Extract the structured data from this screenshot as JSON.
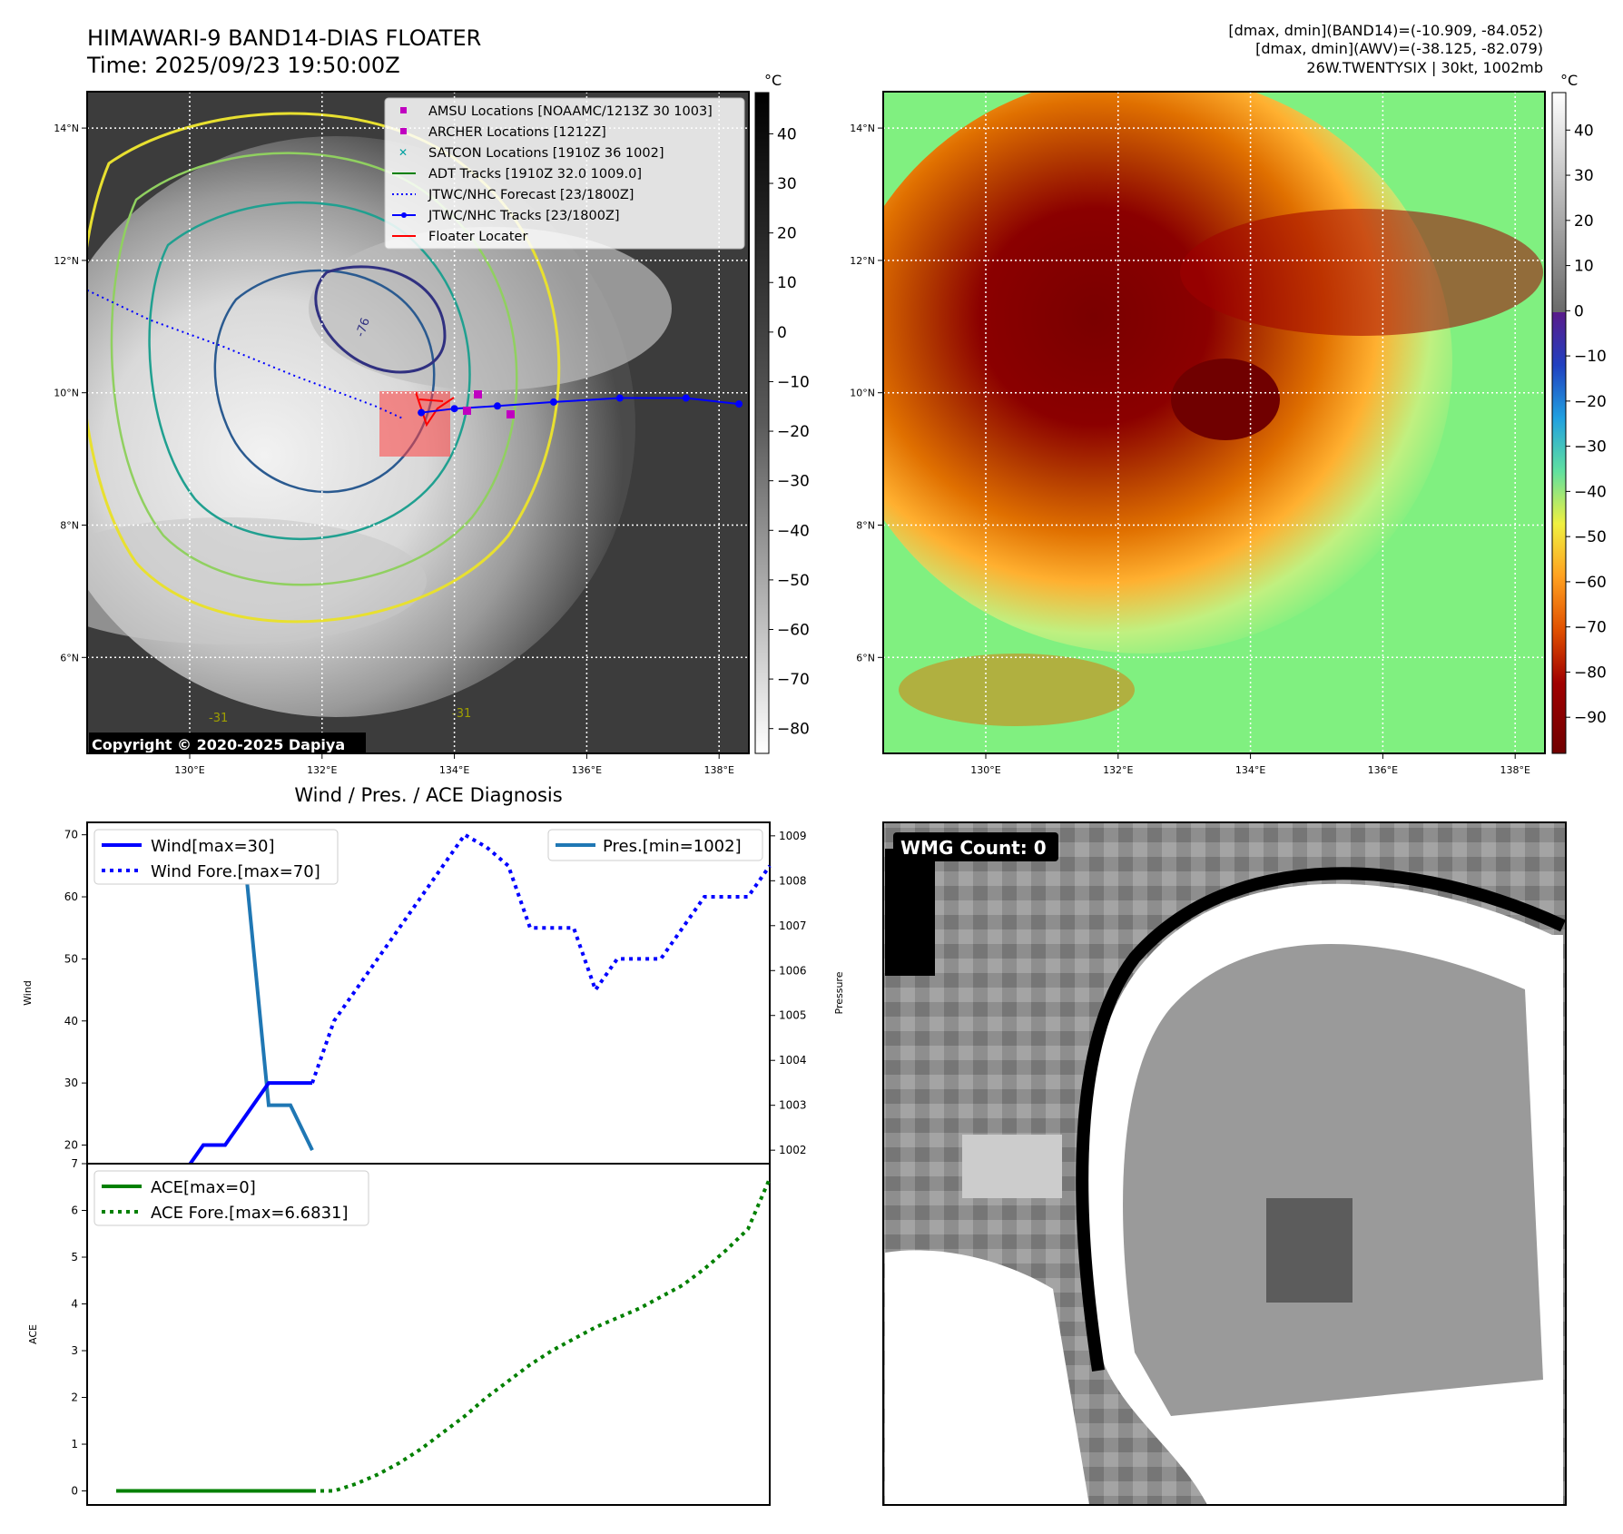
{
  "header": {
    "title_line1": "HIMAWARI-9 BAND14-DIAS FLOATER",
    "title_line2": "Time: 2025/09/23 19:50:00Z",
    "info_line1": "[dmax, dmin](BAND14)=(-10.909, -84.052)",
    "info_line2": "[dmax, dmin](AWV)=(-38.125, -82.079)",
    "info_line3": "26W.TWENTYSIX | 30kt, 1002mb"
  },
  "map_axes": {
    "lat_ticks": [
      "14°N",
      "12°N",
      "10°N",
      "8°N",
      "6°N"
    ],
    "lon_ticks": [
      "130°E",
      "132°E",
      "134°E",
      "136°E",
      "138°E"
    ],
    "lat_values": [
      14,
      12,
      10,
      8,
      6
    ],
    "lon_values": [
      130,
      132,
      134,
      136,
      138
    ],
    "lon_range": [
      128.45,
      138.45
    ],
    "lat_range": [
      4.55,
      14.55
    ]
  },
  "left_map": {
    "copyright": "Copyright © 2020-2025 Dapiya",
    "colorbar_unit": "°C",
    "colorbar_ticks": [
      "40",
      "30",
      "20",
      "10",
      "0",
      "−10",
      "−20",
      "−30",
      "−40",
      "−50",
      "−60",
      "−70",
      "−80"
    ],
    "legend": [
      {
        "label": "AMSU Locations [NOAAMC/1213Z 30 1003]",
        "marker": "square",
        "color": "#c000c0"
      },
      {
        "label": "ARCHER Locations [1212Z]",
        "marker": "square",
        "color": "#c000c0"
      },
      {
        "label": "SATCON Locations [1910Z 36 1002]",
        "marker": "x",
        "color": "#00a0a0"
      },
      {
        "label": "ADT Tracks [1910Z 32.0 1009.0]",
        "marker": "line",
        "color": "#008000"
      },
      {
        "label": "JTWC/NHC Forecast [23/1800Z]",
        "marker": "dotted",
        "color": "#0000ff"
      },
      {
        "label": "JTWC/NHC Tracks [23/1800Z]",
        "marker": "line-dot",
        "color": "#0000ff"
      },
      {
        "label": "Floater Locater",
        "marker": "line",
        "color": "#ff0000"
      }
    ],
    "contour_labels": [
      "-76",
      "-31",
      "-31"
    ]
  },
  "right_map": {
    "colorbar_unit": "°C",
    "colorbar_ticks": [
      "40",
      "30",
      "20",
      "10",
      "0",
      "−10",
      "−20",
      "−30",
      "−40",
      "−50",
      "−60",
      "−70",
      "−80",
      "−90"
    ]
  },
  "wind_panel": {
    "title": "Wind / Pres. / ACE Diagnosis",
    "ylabel_left": "Wind",
    "ylabel_right": "Pressure",
    "left_ticks": [
      "70",
      "60",
      "50",
      "40",
      "30",
      "20"
    ],
    "right_ticks": [
      "1009",
      "1008",
      "1007",
      "1006",
      "1005",
      "1004",
      "1003",
      "1002"
    ],
    "legend_wind": "Wind[max=30]",
    "legend_wind_fore": "Wind Fore.[max=70]",
    "legend_pres": "Pres.[min=1002]"
  },
  "ace_panel": {
    "ylabel": "ACE",
    "ticks": [
      "7",
      "6",
      "5",
      "4",
      "3",
      "2",
      "1",
      "0"
    ],
    "legend_ace": "ACE[max=0]",
    "legend_ace_fore": "ACE Fore.[max=6.6831]"
  },
  "wmg_panel": {
    "label": "WMG Count: 0"
  },
  "chart_data": [
    {
      "type": "line",
      "title": "Wind / Pres. / ACE Diagnosis",
      "ylabel": "Wind",
      "ylim": [
        17,
        72
      ],
      "series": [
        {
          "name": "Wind[max=30]",
          "x": [
            0,
            1,
            2,
            3,
            4,
            5,
            6,
            7,
            8,
            9
          ],
          "values": [
            15,
            15,
            15,
            15,
            20,
            20,
            25,
            30,
            30,
            30
          ],
          "color": "#0000ff",
          "style": "solid"
        },
        {
          "name": "Wind Fore.[max=70]",
          "x": [
            9,
            10,
            11,
            12,
            13,
            14,
            15,
            16,
            17,
            18,
            19,
            20,
            21,
            22,
            23,
            24,
            25,
            26,
            27,
            28,
            29,
            30
          ],
          "values": [
            30,
            40,
            45,
            50,
            55,
            60,
            65,
            70,
            68,
            65,
            55,
            55,
            55,
            45,
            50,
            50,
            50,
            55,
            60,
            60,
            60,
            65
          ],
          "color": "#0000ff",
          "style": "dotted"
        }
      ]
    },
    {
      "type": "line",
      "ylabel": "Pressure",
      "ylim": [
        1001.7,
        1009.3
      ],
      "series": [
        {
          "name": "Pres.[min=1002]",
          "x": [
            0,
            1,
            2,
            3,
            4,
            5,
            6,
            7,
            8,
            9
          ],
          "values": [
            1009,
            1008.5,
            1008.5,
            1008.5,
            1008.5,
            1008.5,
            1008,
            1003,
            1003,
            1002
          ],
          "color": "#1f77b4",
          "style": "solid"
        }
      ]
    },
    {
      "type": "line",
      "ylabel": "ACE",
      "ylim": [
        -0.3,
        7
      ],
      "series": [
        {
          "name": "ACE[max=0]",
          "x": [
            0,
            1,
            2,
            3,
            4,
            5,
            6,
            7,
            8,
            9
          ],
          "values": [
            0,
            0,
            0,
            0,
            0,
            0,
            0,
            0,
            0,
            0
          ],
          "color": "#008000",
          "style": "solid"
        },
        {
          "name": "ACE Fore.[max=6.6831]",
          "x": [
            9,
            10,
            11,
            12,
            13,
            14,
            15,
            16,
            17,
            18,
            19,
            20,
            21,
            22,
            23,
            24,
            25,
            26,
            27,
            28,
            29,
            30
          ],
          "values": [
            0,
            0,
            0.15,
            0.35,
            0.6,
            0.9,
            1.25,
            1.6,
            2.0,
            2.35,
            2.7,
            3.0,
            3.25,
            3.5,
            3.7,
            3.9,
            4.15,
            4.4,
            4.75,
            5.15,
            5.6,
            6.6831
          ],
          "color": "#008000",
          "style": "dotted"
        }
      ]
    }
  ]
}
